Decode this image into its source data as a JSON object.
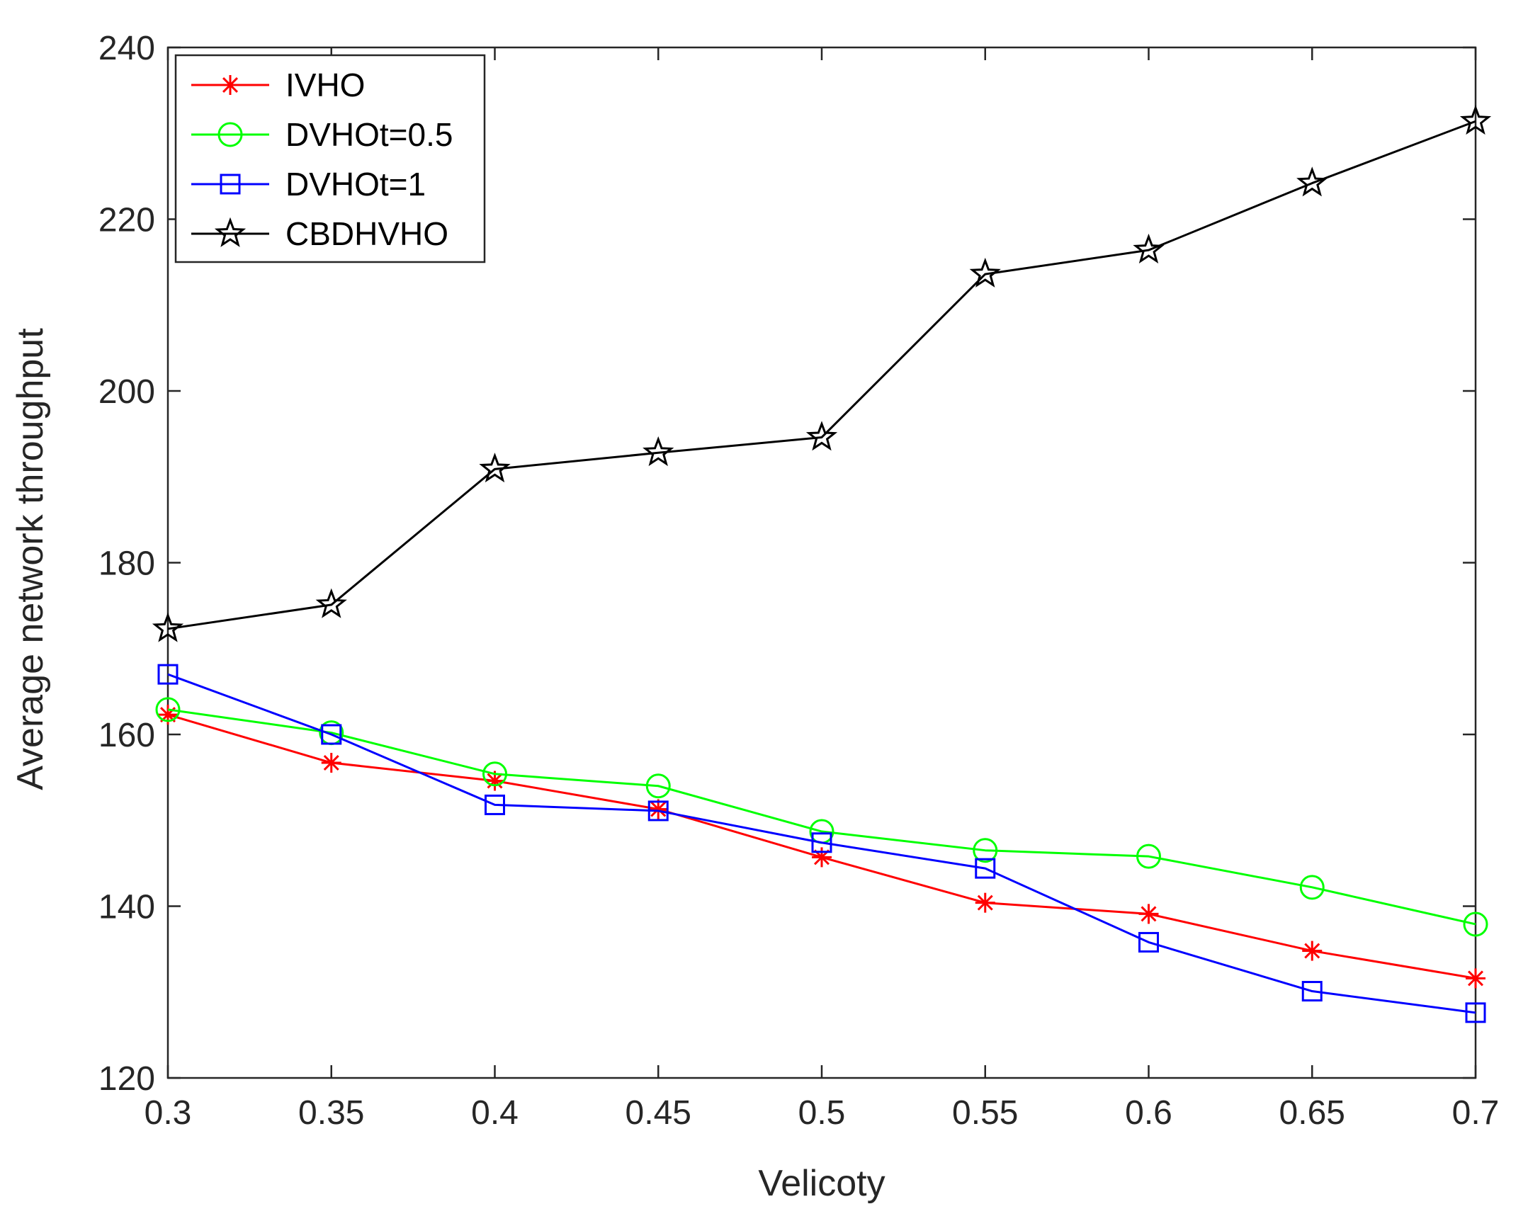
{
  "chart_data": {
    "type": "line",
    "title": "",
    "xlabel": "Velicoty",
    "ylabel": "Average network throughput",
    "xlim": [
      0.3,
      0.7
    ],
    "ylim": [
      120,
      240
    ],
    "x": [
      0.3,
      0.35,
      0.4,
      0.45,
      0.5,
      0.55,
      0.6,
      0.65,
      0.7
    ],
    "xticks": [
      "0.3",
      "0.35",
      "0.4",
      "0.45",
      "0.5",
      "0.55",
      "0.6",
      "0.65",
      "0.7"
    ],
    "yticks": [
      "120",
      "140",
      "160",
      "180",
      "200",
      "220",
      "240"
    ],
    "legend_position": "top-left",
    "grid": false,
    "series": [
      {
        "name": "IVHO",
        "color": "#ff0000",
        "marker": "asterisk",
        "values": [
          162.3,
          156.7,
          154.6,
          151.3,
          145.7,
          140.4,
          139.1,
          134.8,
          131.6
        ]
      },
      {
        "name": "DVHOt=0.5",
        "color": "#00ff00",
        "marker": "circle",
        "values": [
          162.9,
          160.2,
          155.4,
          154.0,
          148.7,
          146.5,
          145.8,
          142.2,
          137.9
        ]
      },
      {
        "name": "DVHOt=1",
        "color": "#0000ff",
        "marker": "square",
        "values": [
          167.0,
          160.0,
          151.8,
          151.1,
          147.4,
          144.4,
          135.8,
          130.1,
          127.6
        ]
      },
      {
        "name": "CBDHVHO",
        "color": "#000000",
        "marker": "star",
        "values": [
          172.3,
          175.1,
          190.9,
          192.8,
          194.6,
          213.6,
          216.4,
          224.2,
          231.4
        ]
      }
    ]
  }
}
